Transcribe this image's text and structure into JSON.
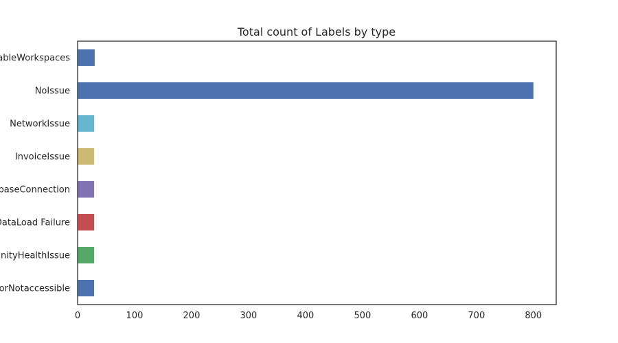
{
  "chart_data": {
    "type": "bar",
    "orientation": "horizontal",
    "title": "Total count of Labels by type",
    "xlabel": "",
    "ylabel": "",
    "xlim": [
      0,
      840
    ],
    "xticks": [
      0,
      100,
      200,
      300,
      400,
      500,
      600,
      700,
      800
    ],
    "grid": false,
    "categories": [
      "ableWorkspaces",
      "NoIssue",
      "NetworkIssue",
      "InvoiceIssue",
      "abaseConnection",
      "DataLoad Failure",
      "unityHealthIssue",
      "oorNotaccessible"
    ],
    "values": [
      30,
      800,
      29,
      29,
      29,
      29,
      29,
      29
    ],
    "colors": [
      "#4c72b0",
      "#4c72b0",
      "#64b5cd",
      "#ccb974",
      "#8172b2",
      "#c44e52",
      "#55a868",
      "#4c72b0"
    ]
  }
}
